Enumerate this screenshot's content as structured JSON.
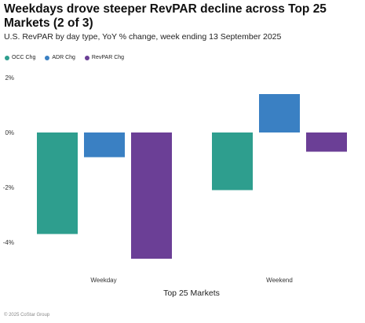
{
  "title": "Weekdays drove steeper RevPAR decline across Top 25 Markets (2 of 3)",
  "subtitle": "U.S. RevPAR by day type, YoY % change, week ending 13 September 2025",
  "footer": "© 2025 CoStar Group",
  "chart_data": {
    "type": "bar",
    "title": "Weekdays drove steeper RevPAR decline across Top 25 Markets (2 of 3)",
    "subtitle": "U.S. RevPAR by day type, YoY % change, week ending 13 September 2025",
    "xlabel": "Top 25 Markets",
    "ylabel": "",
    "categories": [
      "Weekday",
      "Weekend"
    ],
    "series": [
      {
        "name": "OCC Chg",
        "color": "#2e9e8e",
        "values": [
          -3.7,
          -2.1
        ]
      },
      {
        "name": "ADR Chg",
        "color": "#3a80c3",
        "values": [
          -0.9,
          1.4
        ]
      },
      {
        "name": "RevPAR Chg",
        "color": "#6b3f96",
        "values": [
          -4.6,
          -0.7
        ]
      }
    ],
    "ylim": [
      -5,
      2
    ],
    "yticks": [
      2,
      0,
      -2,
      -4
    ],
    "ytick_labels": [
      "2%",
      "0%",
      "-2%",
      "-4%"
    ],
    "grid": false,
    "legend_position": "top-left"
  }
}
